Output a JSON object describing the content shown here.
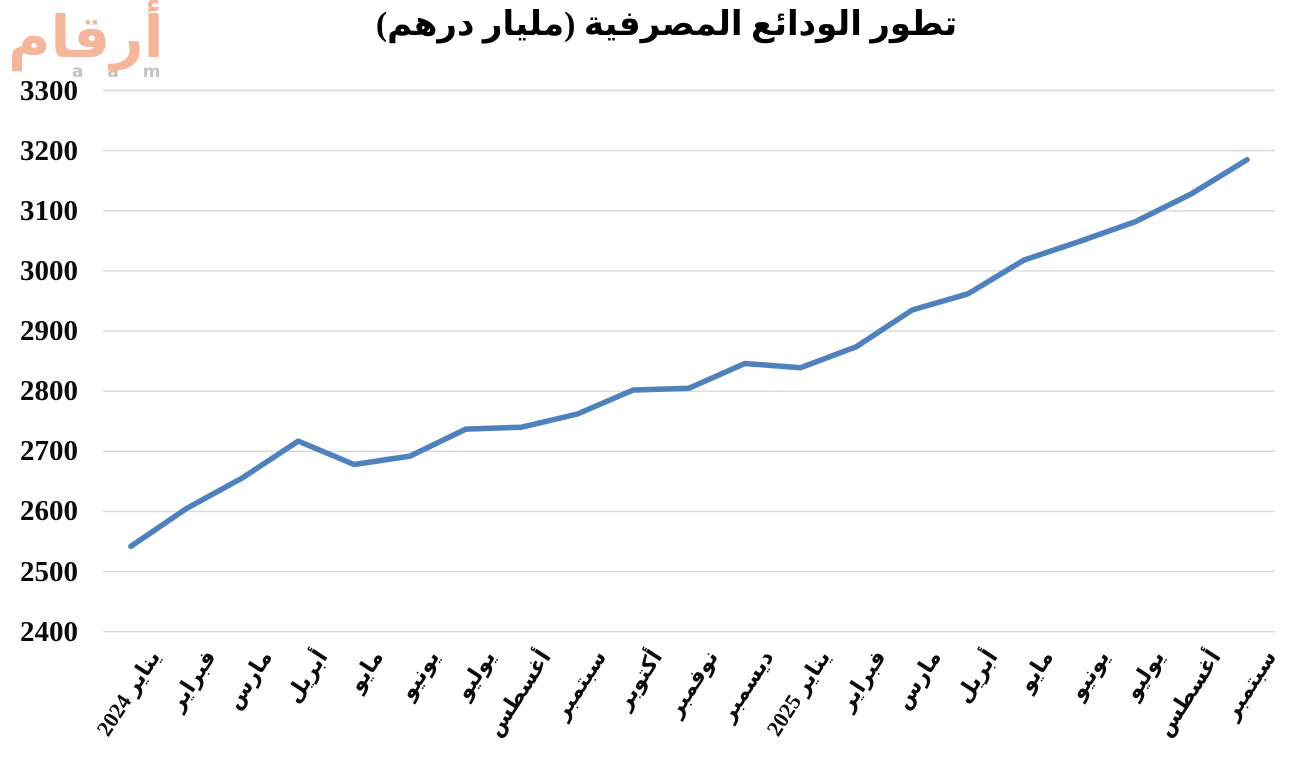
{
  "brand": {
    "logo_text": "أرقام",
    "watermark_letters": "a a m",
    "logo_color": "#f4b79c"
  },
  "chart_data": {
    "type": "line",
    "title": "تطور الودائع المصرفية (مليار درهم)",
    "categories": [
      "يناير 2024",
      "فبراير",
      "مارس",
      "أبريل",
      "مايو",
      "يونيو",
      "يوليو",
      "أغسطس",
      "سبتمبر",
      "أكتوبر",
      "نوفمبر",
      "ديسمبر",
      "يناير 2025",
      "فبراير",
      "مارس",
      "أبريل",
      "مايو",
      "يونيو",
      "يوليو",
      "أغسطس",
      "سبتمبر"
    ],
    "values": [
      2542,
      2605,
      2656,
      2717,
      2678,
      2692,
      2737,
      2740,
      2762,
      2802,
      2805,
      2846,
      2839,
      2874,
      2935,
      2962,
      3018,
      3049,
      3082,
      3128,
      3185
    ],
    "ylim": [
      2400,
      3300
    ],
    "ytick_step": 100,
    "xlabel": "",
    "ylabel": "",
    "grid": "horizontal",
    "legend": "none",
    "line_color": "#4f81bd",
    "gridline_color": "#d9d9d9"
  }
}
